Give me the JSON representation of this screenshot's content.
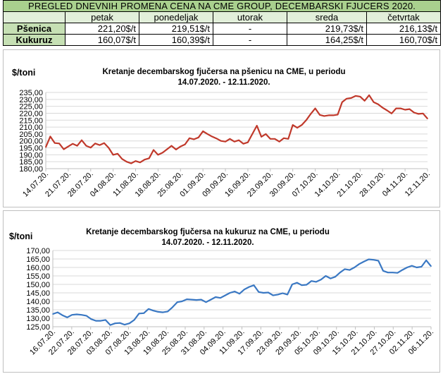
{
  "table": {
    "title": "PREGLED DNEVNIH PROMENA CENA NA CME GROUP, DECEMBARSKI  FJUCERS 2020.",
    "days": [
      "petak",
      "ponedeljak",
      "utorak",
      "sreda",
      "četvrtak"
    ],
    "rows": [
      {
        "label": "Pšenica",
        "values": [
          "221,20$/t",
          "219,51$/t",
          "-",
          "219,73$/t",
          "216,13$/t"
        ]
      },
      {
        "label": "Kukuruz",
        "values": [
          "160,07$/t",
          "160,39$/t",
          "-",
          "164,25$/t",
          "160,70$/t"
        ]
      }
    ]
  },
  "chart_data": [
    {
      "type": "line",
      "title": "Kretanje decembarskog fjučersa na  pšenicu na CME, u periodu",
      "subtitle": "14.07.2020. - 12.11.2020.",
      "ylabel": "$/toni",
      "ylim": [
        180,
        235
      ],
      "yticks": [
        "180,00",
        "185,00",
        "190,00",
        "195,00",
        "200,00",
        "205,00",
        "210,00",
        "215,00",
        "220,00",
        "225,00",
        "230,00",
        "235,00"
      ],
      "xtick_labels": [
        "14.07.20.",
        "21.07.20.",
        "28.07.20.",
        "04.08.20.",
        "11.08.20.",
        "18.08.20.",
        "25.08.20.",
        "01.09.20.",
        "09.09.20.",
        "16.09.20.",
        "23.09.20.",
        "30.09.20.",
        "07.10.20.",
        "14.10.20.",
        "21.10.20.",
        "28.10.20.",
        "04.11.20.",
        "12.11.20."
      ],
      "grid": true,
      "color": "#c0392b",
      "values": [
        195.5,
        203.2,
        198.5,
        198.2,
        194.0,
        196.0,
        198.0,
        196.5,
        200.5,
        196.5,
        195.2,
        198.2,
        197.0,
        198.5,
        195.0,
        190.0,
        190.8,
        187.0,
        185.0,
        183.8,
        185.5,
        184.5,
        186.5,
        187.5,
        193.5,
        190.0,
        191.5,
        194.0,
        196.5,
        193.8,
        196.0,
        197.5,
        202.0,
        201.2,
        202.5,
        207.0,
        205.0,
        203.2,
        201.8,
        200.0,
        199.5,
        201.5,
        199.5,
        200.5,
        198.0,
        199.0,
        205.0,
        211.0,
        203.0,
        205.0,
        201.5,
        201.5,
        199.5,
        202.0,
        201.5,
        211.5,
        209.5,
        211.5,
        215.0,
        219.5,
        223.5,
        218.8,
        218.0,
        218.5,
        218.5,
        219.0,
        228.0,
        230.5,
        231.0,
        232.5,
        232.0,
        229.0,
        233.0,
        228.0,
        226.5,
        224.0,
        222.0,
        219.8,
        223.5,
        223.5,
        222.5,
        223.0,
        220.5,
        219.5,
        219.8,
        216.1
      ]
    },
    {
      "type": "line",
      "title": "Kretanje decembarskog fjučersa na  kukuruz na CME, u periodu",
      "subtitle": "14.07.2020. - 12.11.2020.",
      "ylabel": "$/toni",
      "ylim": [
        125,
        170
      ],
      "yticks": [
        "125,00",
        "130,00",
        "135,00",
        "140,00",
        "145,00",
        "150,00",
        "155,00",
        "160,00",
        "165,00",
        "170,00"
      ],
      "xtick_labels": [
        "16.07.20.",
        "22.07.20.",
        "28.07.20.",
        "03.08.20.",
        "07.08.20.",
        "13.08.20.",
        "19.08.20.",
        "25.08.20.",
        "31.08.20.",
        "04.09.20.",
        "11.09.20.",
        "17.09.20.",
        "23.09.20.",
        "29.09.20.",
        "05.10.20.",
        "09.10.20.",
        "15.10.20.",
        "21.10.20.",
        "27.10.20.",
        "02.11.20.",
        "06.11.20."
      ],
      "grid": true,
      "color": "#3a78c3",
      "values": [
        132.5,
        133.5,
        131.8,
        130.5,
        132.0,
        132.3,
        132.0,
        131.5,
        129.5,
        128.5,
        128.5,
        129.0,
        126.0,
        127.0,
        127.2,
        126.2,
        127.0,
        129.0,
        132.8,
        133.0,
        135.5,
        134.5,
        133.8,
        133.5,
        134.0,
        136.5,
        139.5,
        140.0,
        141.2,
        141.0,
        140.8,
        141.0,
        139.5,
        141.0,
        142.5,
        142.0,
        143.5,
        145.0,
        145.8,
        144.5,
        147.0,
        148.5,
        149.5,
        145.5,
        145.0,
        145.2,
        143.5,
        144.0,
        144.8,
        144.0,
        150.0,
        151.0,
        149.5,
        149.8,
        152.0,
        151.5,
        152.8,
        155.0,
        153.5,
        154.5,
        157.0,
        159.0,
        158.5,
        160.0,
        162.0,
        163.5,
        164.8,
        164.5,
        164.0,
        158.0,
        157.0,
        157.0,
        156.8,
        158.5,
        160.0,
        161.0,
        160.0,
        160.4,
        164.2,
        160.7
      ]
    }
  ]
}
